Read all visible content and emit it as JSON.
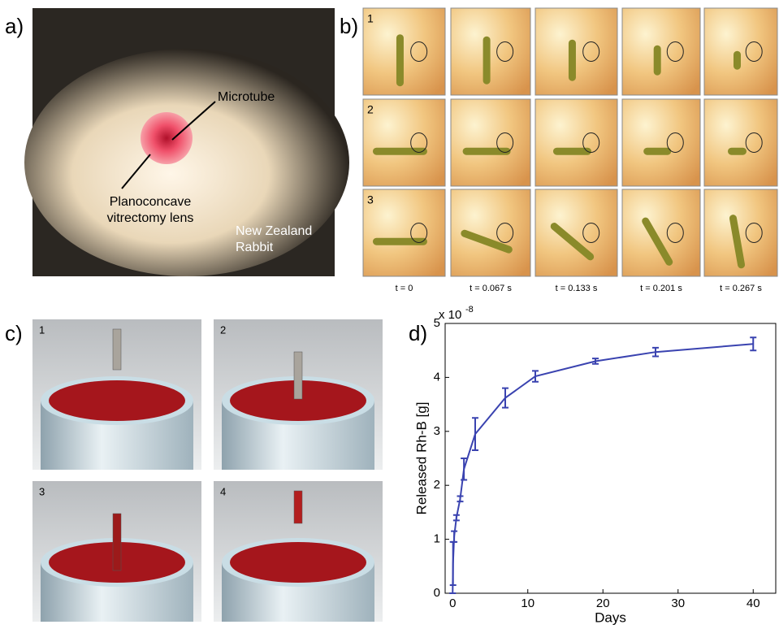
{
  "figure": {
    "panel_a": {
      "label": "a)",
      "microtube": "Microtube",
      "lens": [
        "Planoconcave",
        "vitrectomy lens"
      ],
      "animal": [
        "New Zealand",
        "Rabbit"
      ]
    },
    "panel_b": {
      "label": "b)",
      "rows": [
        "1",
        "2",
        "3"
      ],
      "times": [
        "t = 0",
        "t = 0.067 s",
        "t = 0.133 s",
        "t = 0.201 s",
        "t = 0.267 s"
      ]
    },
    "panel_c": {
      "label": "c)",
      "steps": [
        "1",
        "2",
        "3",
        "4"
      ]
    },
    "panel_d": {
      "label": "d)"
    }
  },
  "chart_data": {
    "type": "line",
    "xlabel": "Days",
    "ylabel": "Released Rh-B [g]",
    "y_multiplier": {
      "base": "x 10",
      "exponent": "-8"
    },
    "x": [
      0,
      0.05,
      0.2,
      0.5,
      1,
      1.5,
      3,
      7,
      11,
      19,
      27,
      40
    ],
    "series": [
      {
        "color": "#3a43b0",
        "values": [
          0,
          0.55,
          1.05,
          1.4,
          1.75,
          2.3,
          2.95,
          3.62,
          4.02,
          4.3,
          4.47,
          4.62
        ],
        "errors": [
          0,
          0.4,
          0.1,
          0.05,
          0.05,
          0.2,
          0.3,
          0.18,
          0.1,
          0.05,
          0.08,
          0.12
        ]
      }
    ],
    "xlim": [
      -1,
      43
    ],
    "ylim": [
      0,
      5
    ],
    "xticks": [
      0,
      10,
      20,
      30,
      40
    ],
    "yticks": [
      0,
      1,
      2,
      3,
      4,
      5
    ]
  }
}
